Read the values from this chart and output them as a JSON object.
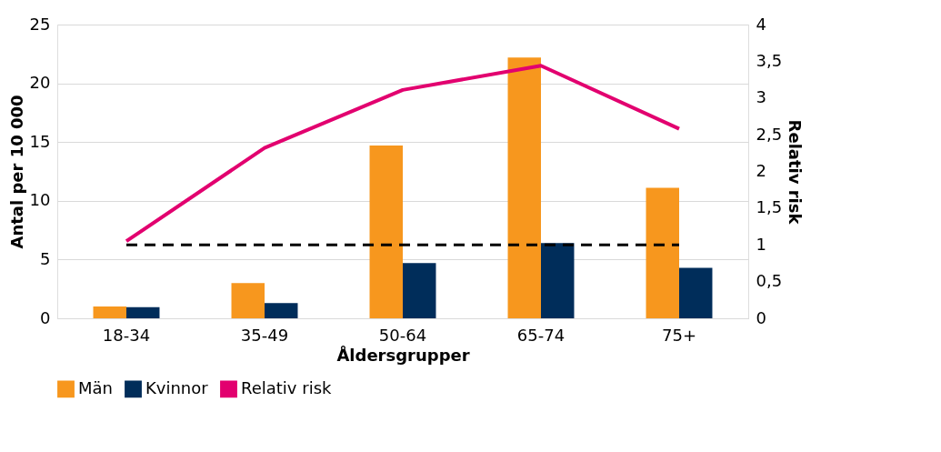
{
  "chart_data": {
    "type": "bar",
    "xlabel": "Åldersgrupper",
    "ylabel": "Antal per 10 000",
    "y2label": "Relativ risk",
    "categories": [
      "18-34",
      "35-49",
      "50-64",
      "65-74",
      "75+"
    ],
    "series": [
      {
        "name": "Män",
        "color": "#f7971e",
        "values": [
          1.0,
          3.0,
          14.7,
          22.2,
          11.1
        ]
      },
      {
        "name": "Kvinnor",
        "color": "#002d5a",
        "values": [
          0.95,
          1.3,
          4.7,
          6.4,
          4.3
        ]
      },
      {
        "name": "Relativ risk",
        "type": "line",
        "axis": "y2",
        "color": "#e2006f",
        "values": [
          1.05,
          2.32,
          3.11,
          3.44,
          2.58
        ]
      }
    ],
    "ylim": [
      0,
      25
    ],
    "yticks": [
      0,
      5,
      10,
      15,
      20,
      25
    ],
    "y2lim": [
      0,
      4
    ],
    "y2ticks": [
      0,
      {
        "value": 0.5,
        "label": "0,5"
      },
      1,
      {
        "value": 1.5,
        "label": "1,5"
      },
      2,
      {
        "value": 2.5,
        "label": "2,5"
      },
      3,
      {
        "value": 3.5,
        "label": "3,5"
      },
      4
    ],
    "ref_lines": [
      {
        "axis": "y2",
        "value": 1,
        "color": "#000000",
        "line_style": "dashed"
      }
    ],
    "grid": "y",
    "legend": "bottom"
  }
}
